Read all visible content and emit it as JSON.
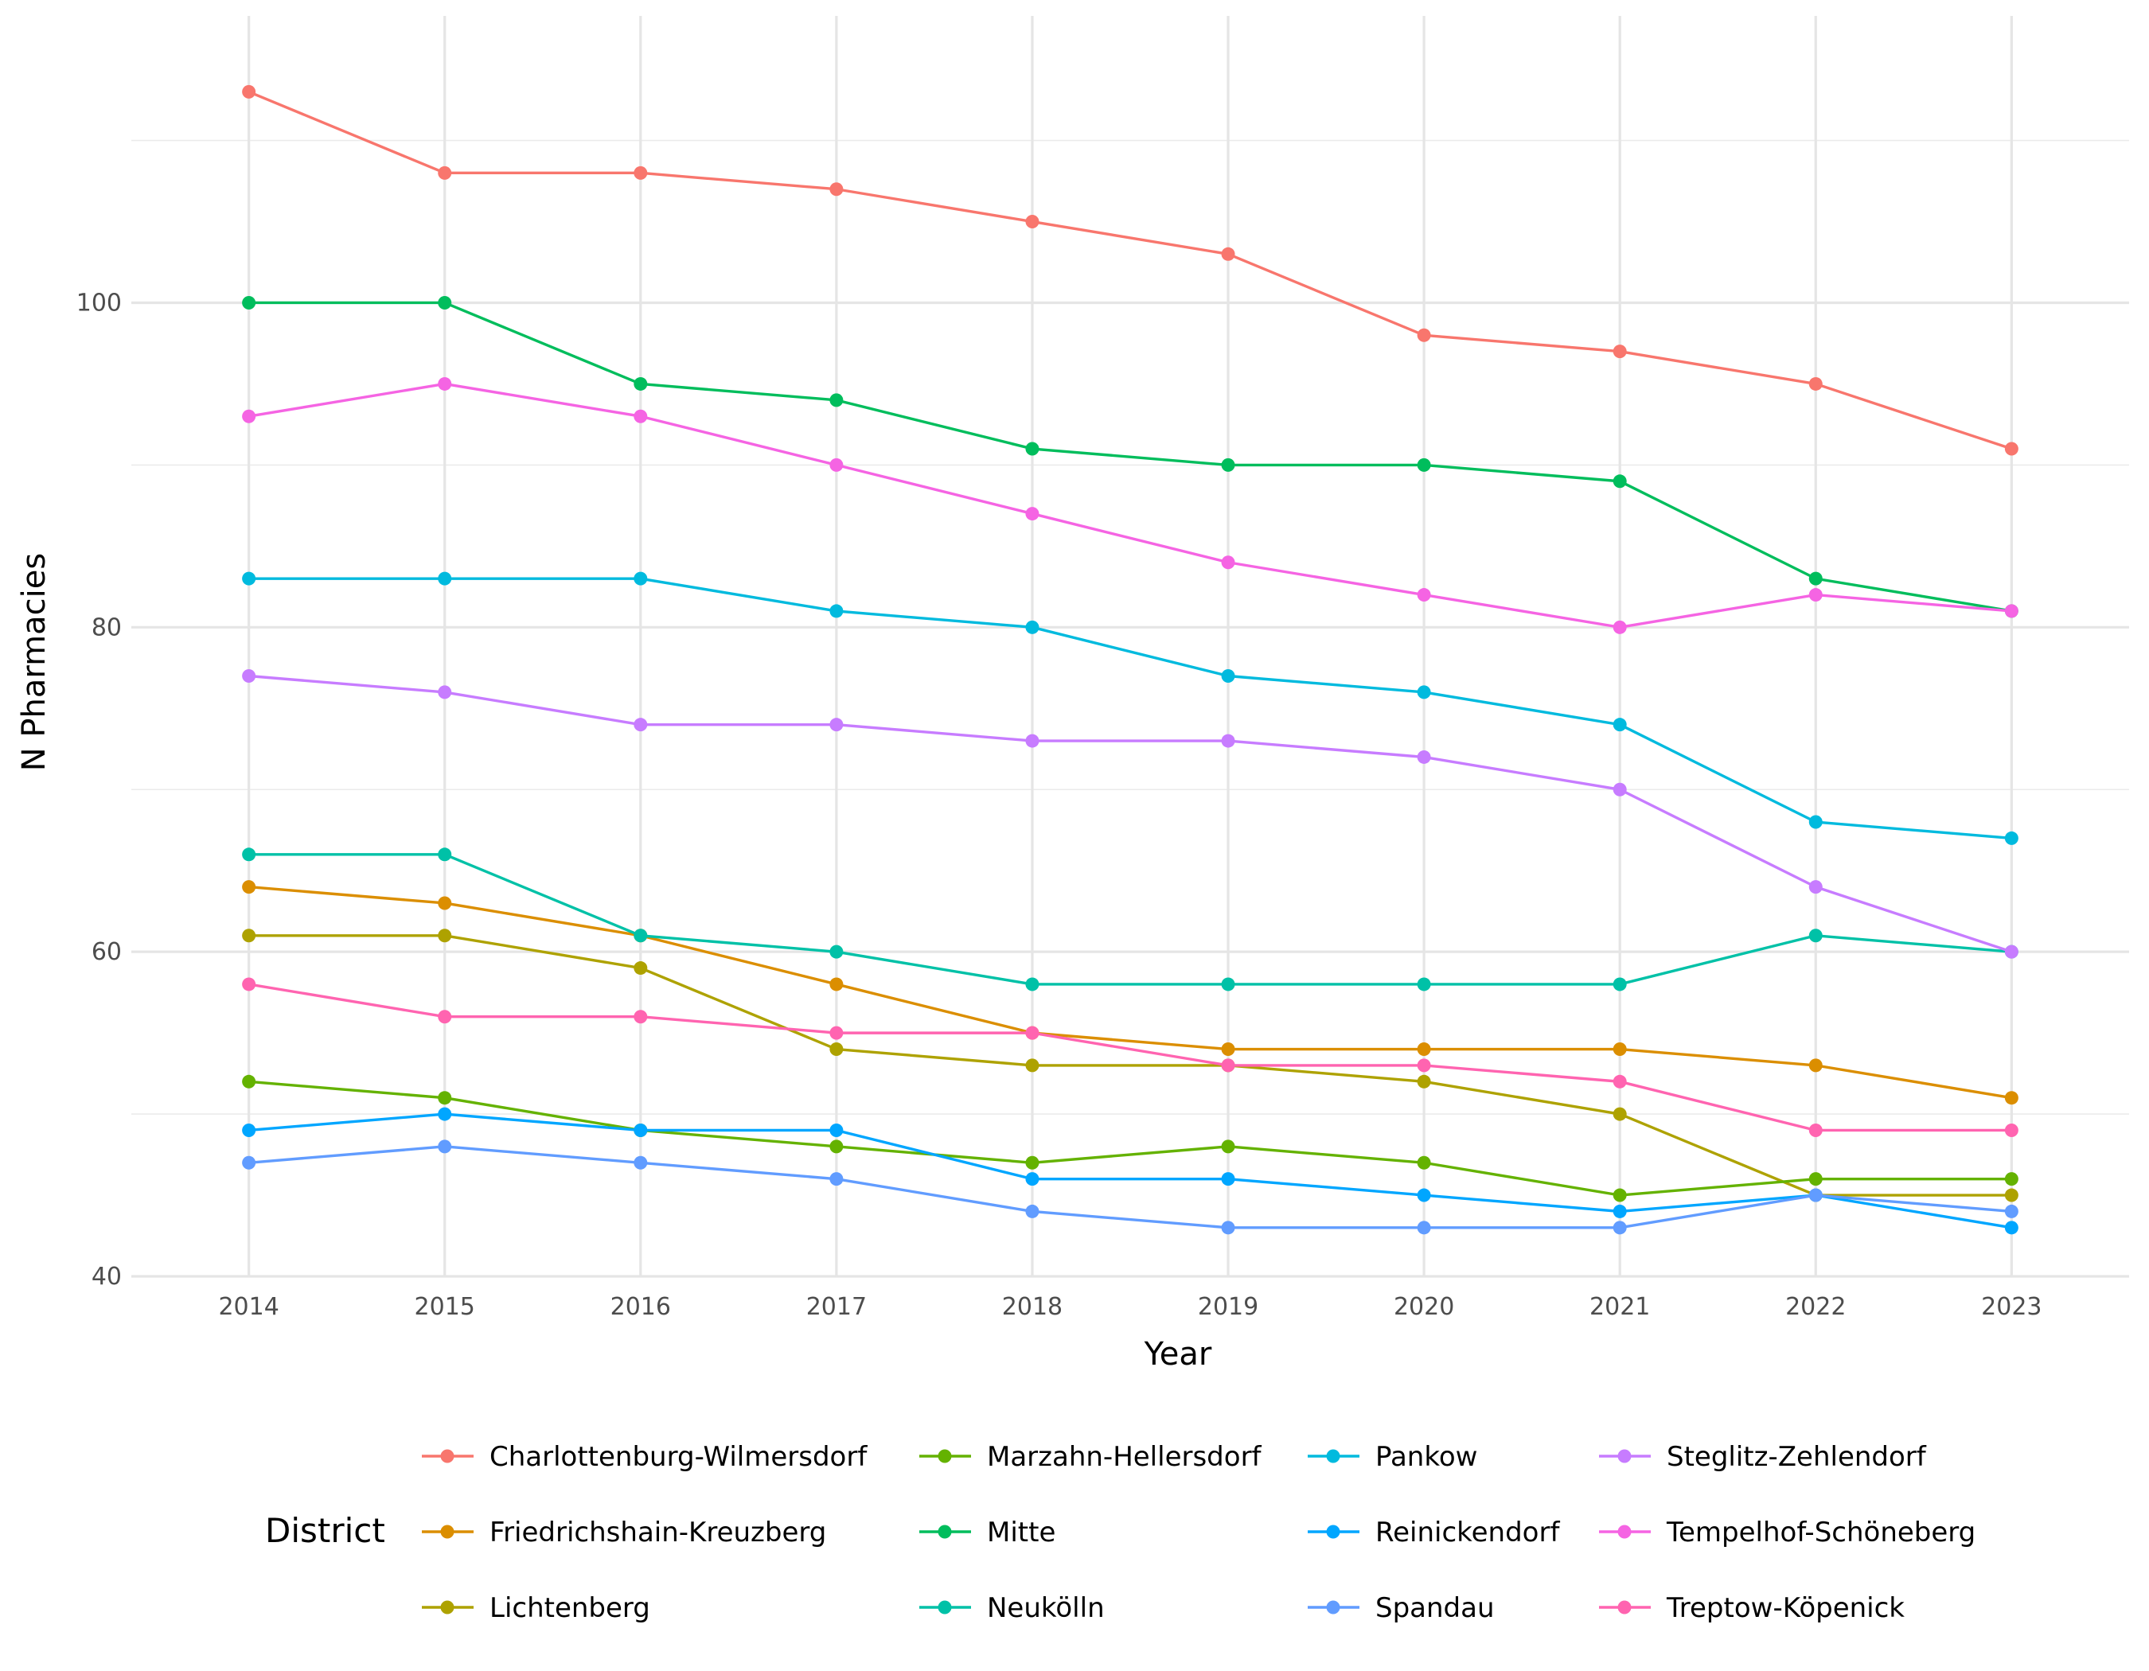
{
  "chart_data": {
    "type": "line",
    "title": "",
    "xlabel": "Year",
    "ylabel": "N Pharmacies",
    "x": [
      2014,
      2015,
      2016,
      2017,
      2018,
      2019,
      2020,
      2021,
      2022,
      2023
    ],
    "ylim": [
      40,
      114
    ],
    "yticks": [
      40,
      60,
      80,
      100
    ],
    "grid": true,
    "legend": {
      "title": "District",
      "position": "bottom"
    },
    "series": [
      {
        "name": "Charlottenburg-Wilmersdorf",
        "color": "#F8766D",
        "values": [
          113,
          108,
          108,
          107,
          105,
          103,
          98,
          97,
          95,
          91
        ]
      },
      {
        "name": "Friedrichshain-Kreuzberg",
        "color": "#DB8E00",
        "values": [
          64,
          63,
          61,
          58,
          55,
          54,
          54,
          54,
          53,
          51
        ]
      },
      {
        "name": "Lichtenberg",
        "color": "#AEA200",
        "values": [
          61,
          61,
          59,
          54,
          53,
          53,
          52,
          50,
          45,
          45
        ]
      },
      {
        "name": "Marzahn-Hellersdorf",
        "color": "#64B200",
        "values": [
          52,
          51,
          49,
          48,
          47,
          48,
          47,
          45,
          46,
          46
        ]
      },
      {
        "name": "Mitte",
        "color": "#00BD5C",
        "values": [
          100,
          100,
          95,
          94,
          91,
          90,
          90,
          89,
          83,
          81
        ]
      },
      {
        "name": "Neukölln",
        "color": "#00C1A7",
        "values": [
          66,
          66,
          61,
          60,
          58,
          58,
          58,
          58,
          61,
          60
        ]
      },
      {
        "name": "Pankow",
        "color": "#00BADE",
        "values": [
          83,
          83,
          83,
          81,
          80,
          77,
          76,
          74,
          68,
          67
        ]
      },
      {
        "name": "Reinickendorf",
        "color": "#00A6FF",
        "values": [
          49,
          50,
          49,
          49,
          46,
          46,
          45,
          44,
          45,
          43
        ]
      },
      {
        "name": "Spandau",
        "color": "#619CFF",
        "values": [
          47,
          48,
          47,
          46,
          44,
          43,
          43,
          43,
          45,
          44
        ]
      },
      {
        "name": "Steglitz-Zehlendorf",
        "color": "#C77CFF",
        "values": [
          77,
          76,
          74,
          74,
          73,
          73,
          72,
          70,
          64,
          60
        ]
      },
      {
        "name": "Tempelhof-Schöneberg",
        "color": "#F564E3",
        "values": [
          93,
          95,
          93,
          90,
          87,
          84,
          82,
          80,
          82,
          81
        ]
      },
      {
        "name": "Treptow-Köpenick",
        "color": "#FF64B0",
        "values": [
          58,
          56,
          56,
          55,
          55,
          53,
          53,
          52,
          49,
          49
        ]
      }
    ]
  }
}
